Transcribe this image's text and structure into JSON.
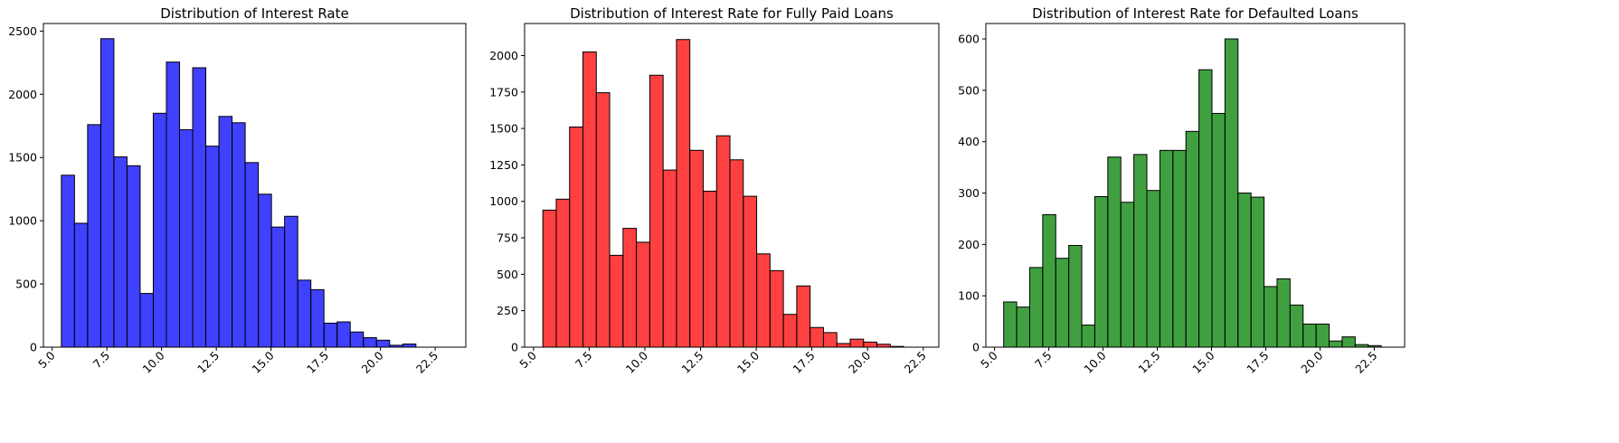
{
  "chart_data": [
    {
      "type": "bar",
      "title": "Distribution of Interest Rate",
      "xlabel": "",
      "ylabel": "",
      "xlim": [
        4.6,
        23.9
      ],
      "ylim": [
        0,
        2560
      ],
      "xticks": [
        "5.0",
        "7.5",
        "10.0",
        "12.5",
        "15.0",
        "17.5",
        "20.0",
        "22.5"
      ],
      "yticks": [
        "0",
        "500",
        "1000",
        "1500",
        "2000",
        "2500"
      ],
      "bar_color": "#0000ff",
      "edge_color": "#000000",
      "bin_start": 5.42,
      "bin_width": 0.6,
      "values": [
        1360,
        980,
        1760,
        2440,
        1505,
        1435,
        425,
        1850,
        2255,
        1720,
        2210,
        1590,
        1825,
        1775,
        1460,
        1210,
        950,
        1035,
        530,
        455,
        190,
        200,
        120,
        75,
        55,
        15,
        25,
        0,
        0,
        0
      ]
    },
    {
      "type": "bar",
      "title": "Distribution of Interest Rate for Fully Paid Loans",
      "xlabel": "",
      "ylabel": "",
      "xlim": [
        4.6,
        23.2
      ],
      "ylim": [
        0,
        2220
      ],
      "xticks": [
        "5.0",
        "7.5",
        "10.0",
        "12.5",
        "15.0",
        "17.5",
        "20.0",
        "22.5"
      ],
      "yticks": [
        "0",
        "250",
        "500",
        "750",
        "1000",
        "1250",
        "1500",
        "1750",
        "2000"
      ],
      "bar_color": "#ff0000",
      "edge_color": "#000000",
      "bin_start": 5.42,
      "bin_width": 0.6,
      "values": [
        940,
        1015,
        1510,
        2025,
        1745,
        630,
        815,
        720,
        1865,
        1215,
        2110,
        1350,
        1070,
        1450,
        1285,
        1035,
        640,
        525,
        225,
        420,
        135,
        100,
        25,
        55,
        35,
        20,
        5,
        0,
        0,
        0
      ]
    },
    {
      "type": "bar",
      "title": "Distribution of Interest Rate for Defaulted Loans",
      "xlabel": "",
      "ylabel": "",
      "xlim": [
        4.6,
        23.9
      ],
      "ylim": [
        0,
        630
      ],
      "xticks": [
        "5.0",
        "7.5",
        "10.0",
        "12.5",
        "15.0",
        "17.5",
        "20.0",
        "22.5"
      ],
      "yticks": [
        "0",
        "100",
        "200",
        "300",
        "400",
        "500",
        "600"
      ],
      "bar_color": "#008000",
      "edge_color": "#000000",
      "bin_start": 5.42,
      "bin_width": 0.6,
      "values": [
        88,
        78,
        155,
        258,
        173,
        198,
        43,
        293,
        370,
        282,
        375,
        305,
        383,
        383,
        420,
        540,
        455,
        600,
        300,
        292,
        118,
        133,
        82,
        45,
        45,
        12,
        20,
        5,
        3,
        0
      ]
    }
  ]
}
